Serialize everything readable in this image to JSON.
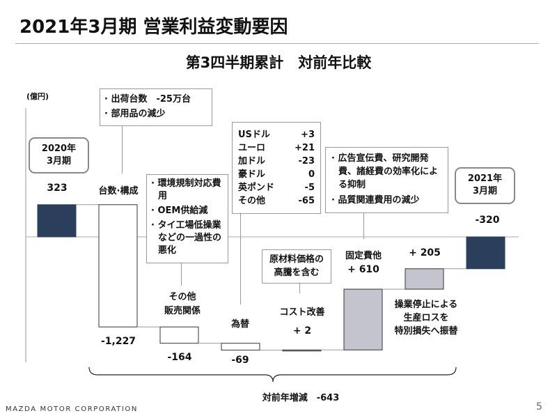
{
  "title": "2021年3月期 営業利益変動要因",
  "subtitle": "第3四半期累計　対前年比較",
  "unit": "(億円)",
  "footer": "MAZDA MOTOR CORPORATION",
  "page_number": "5",
  "colors": {
    "total_bar": "#2b3f5c",
    "decrease_bar": "#ffffff",
    "increase_bar": "#c4c4cf",
    "gridline": "#aaaaaa"
  },
  "chart_data": {
    "type": "waterfall",
    "unit": "億円",
    "categories": [
      {
        "label": "2020年3月期",
        "value": 323,
        "kind": "total",
        "value_label": "323"
      },
      {
        "label": "台数·構成",
        "value": -1227,
        "kind": "delta",
        "value_label": "-1,227"
      },
      {
        "label": "その他販売関係",
        "value": -164,
        "kind": "delta",
        "value_label": "-164"
      },
      {
        "label": "為替",
        "value": -69,
        "kind": "delta",
        "value_label": "-69"
      },
      {
        "label": "コスト改善",
        "value": 2,
        "kind": "delta",
        "value_label": "+ 2"
      },
      {
        "label": "固定費他",
        "value": 610,
        "kind": "delta",
        "value_label": "+ 610"
      },
      {
        "label": "操業停止による生産ロスを特別損失へ振替",
        "value": 205,
        "kind": "delta",
        "value_label": "+ 205"
      },
      {
        "label": "2021年3月期",
        "value": -320,
        "kind": "total",
        "value_label": "-320"
      }
    ],
    "total_change": {
      "label": "対前年増減",
      "value": -643,
      "value_label": "-643"
    }
  },
  "labels": {
    "start_year": "2020年",
    "start_period": "3月期",
    "end_year": "2021年",
    "end_period": "3月期",
    "volume": "台数·構成",
    "other_sales_1": "その他",
    "other_sales_2": "販売関係",
    "fx": "為替",
    "cost": "コスト改善",
    "fixed": "固定費他",
    "special_1": "操業停止による",
    "special_2": "生産ロスを",
    "special_3": "特別損失へ振替",
    "total_change": "対前年増減　-643"
  },
  "callouts": {
    "volume": [
      "· 出荷台数　-25万台",
      "· 部用品の減少"
    ],
    "other_sales": [
      "· 環境規制対応費用",
      "· OEM供給減",
      "· タイ工場低操業などの一過性の悪化"
    ],
    "fx": [
      {
        "currency": "USドル",
        "value": "+3"
      },
      {
        "currency": "ユーロ",
        "value": "+21"
      },
      {
        "currency": "加ドル",
        "value": "-23"
      },
      {
        "currency": "豪ドル",
        "value": "0"
      },
      {
        "currency": "英ポンド",
        "value": "-5"
      },
      {
        "currency": "その他",
        "value": "-65"
      }
    ],
    "cost": "原材料価格の高騰を含む",
    "fixed": [
      "· 広告宣伝費、研究開発費、諸経費の効率化による抑制",
      "· 品質関連費用の減少"
    ]
  }
}
